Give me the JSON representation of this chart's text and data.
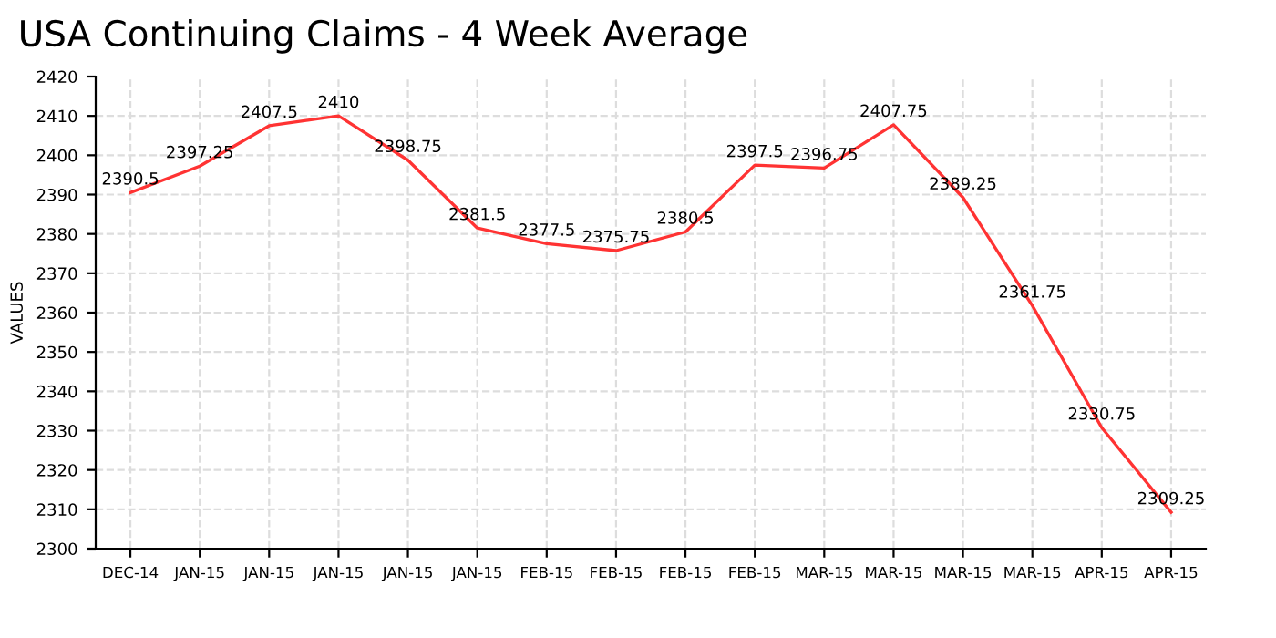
{
  "chart_data": {
    "type": "line",
    "title": "USA Continuing Claims - 4 Week Average",
    "ylabel": "VALUES",
    "categories": [
      "DEC-14",
      "JAN-15",
      "JAN-15",
      "JAN-15",
      "JAN-15",
      "JAN-15",
      "FEB-15",
      "FEB-15",
      "FEB-15",
      "FEB-15",
      "MAR-15",
      "MAR-15",
      "MAR-15",
      "MAR-15",
      "APR-15",
      "APR-15"
    ],
    "series": [
      {
        "color": "#ff3333",
        "values": [
          2390.5,
          2397.25,
          2407.5,
          2410,
          2398.75,
          2381.5,
          2377.5,
          2375.75,
          2380.5,
          2397.5,
          2396.75,
          2407.75,
          2389.25,
          2361.75,
          2330.75,
          2309.25
        ]
      }
    ],
    "data_labels": true,
    "ylim": [
      2300,
      2420
    ],
    "yticks": [
      2300,
      2310,
      2320,
      2330,
      2340,
      2350,
      2360,
      2370,
      2380,
      2390,
      2400,
      2410,
      2420
    ],
    "grid": true,
    "marker": "none",
    "line_style": "solid",
    "legend": false
  }
}
